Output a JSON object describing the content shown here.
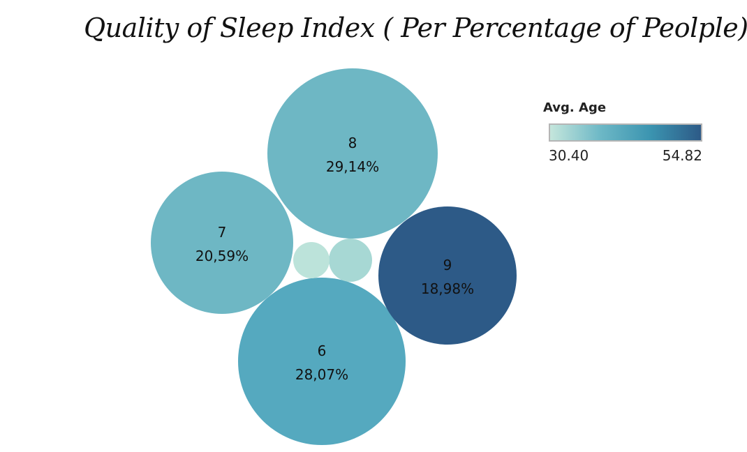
{
  "title": "Quality of Sleep Index ( Per Percentage of Peolple)",
  "legend": {
    "title": "Avg. Age",
    "min_label": "30.40",
    "max_label": "54.82",
    "min": 30.4,
    "max": 54.82,
    "colors": [
      "#c5e6dc",
      "#6db8c6",
      "#3b94b0",
      "#2d5a87"
    ]
  },
  "chart_data": {
    "type": "bubble",
    "title": "Quality of Sleep Index ( Per Percentage of Peolple)",
    "color_legend": "Avg. Age",
    "color_range": [
      30.4,
      54.82
    ],
    "bubbles": [
      {
        "category": "8",
        "percent_label": "29,14%",
        "percent": 29.14,
        "avg_age": 43.0,
        "color": "#6eb7c4"
      },
      {
        "category": "6",
        "percent_label": "28,07%",
        "percent": 28.07,
        "avg_age": 45.0,
        "color": "#55a9bf"
      },
      {
        "category": "7",
        "percent_label": "20,59%",
        "percent": 20.59,
        "avg_age": 42.5,
        "color": "#6eb7c4"
      },
      {
        "category": "9",
        "percent_label": "18,98%",
        "percent": 18.98,
        "avg_age": 54.82,
        "color": "#2d5a87"
      },
      {
        "category": "",
        "percent_label": "",
        "percent": 1.6,
        "avg_age": 33.0,
        "color": "#a7d8d4"
      },
      {
        "category": "",
        "percent_label": "",
        "percent": 1.3,
        "avg_age": 30.4,
        "color": "#bce3da"
      }
    ]
  }
}
